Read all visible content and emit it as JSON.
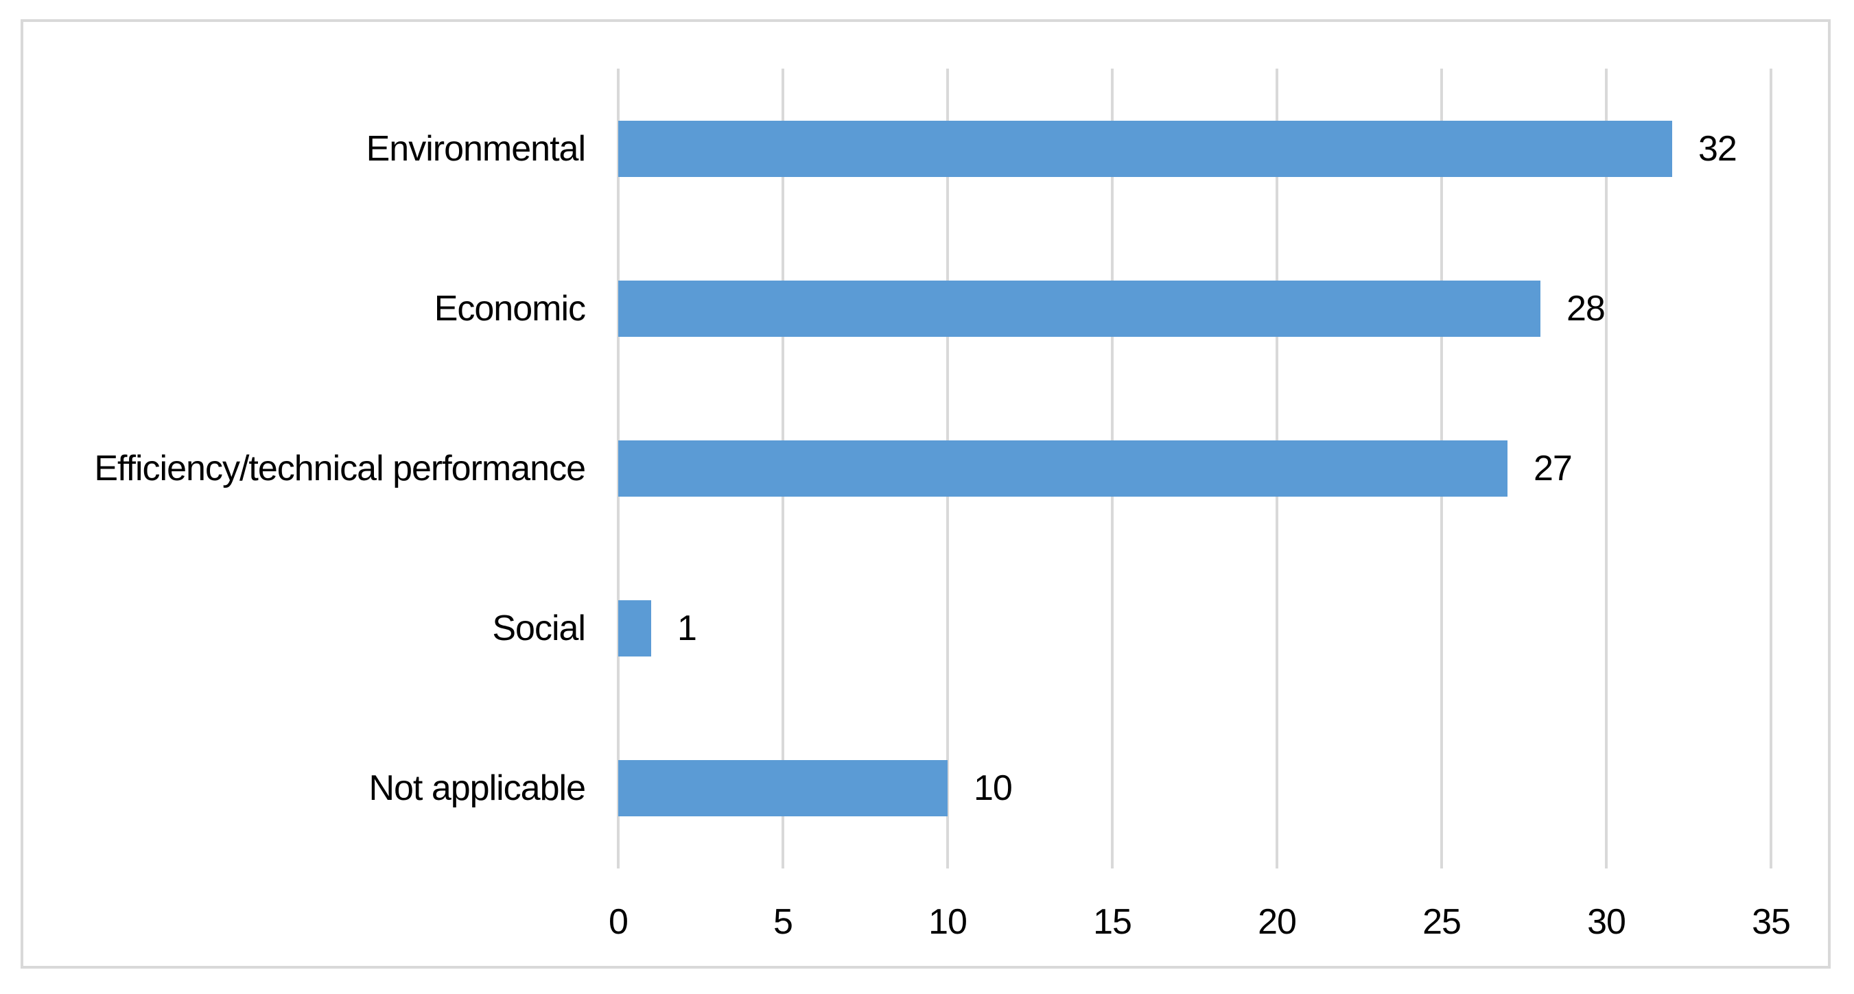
{
  "chart_data": {
    "type": "bar",
    "orientation": "horizontal",
    "title": "",
    "xlabel": "",
    "ylabel": "",
    "categories": [
      "Environmental",
      "Economic",
      "Efficiency/technical performance",
      "Social",
      "Not applicable"
    ],
    "values": [
      32,
      28,
      27,
      1,
      10
    ],
    "data_labels": [
      "32",
      "28",
      "27",
      "1",
      "10"
    ],
    "xlim": [
      0,
      35
    ],
    "x_ticks": [
      0,
      5,
      10,
      15,
      20,
      25,
      30,
      35
    ],
    "grid": "vertical-gridlines-on",
    "legend": "none",
    "colors": {
      "bar": "#5b9bd5",
      "gridline": "#d9d9d9",
      "frame_border": "#d9d9d9",
      "text": "#000000",
      "background": "#ffffff"
    }
  }
}
